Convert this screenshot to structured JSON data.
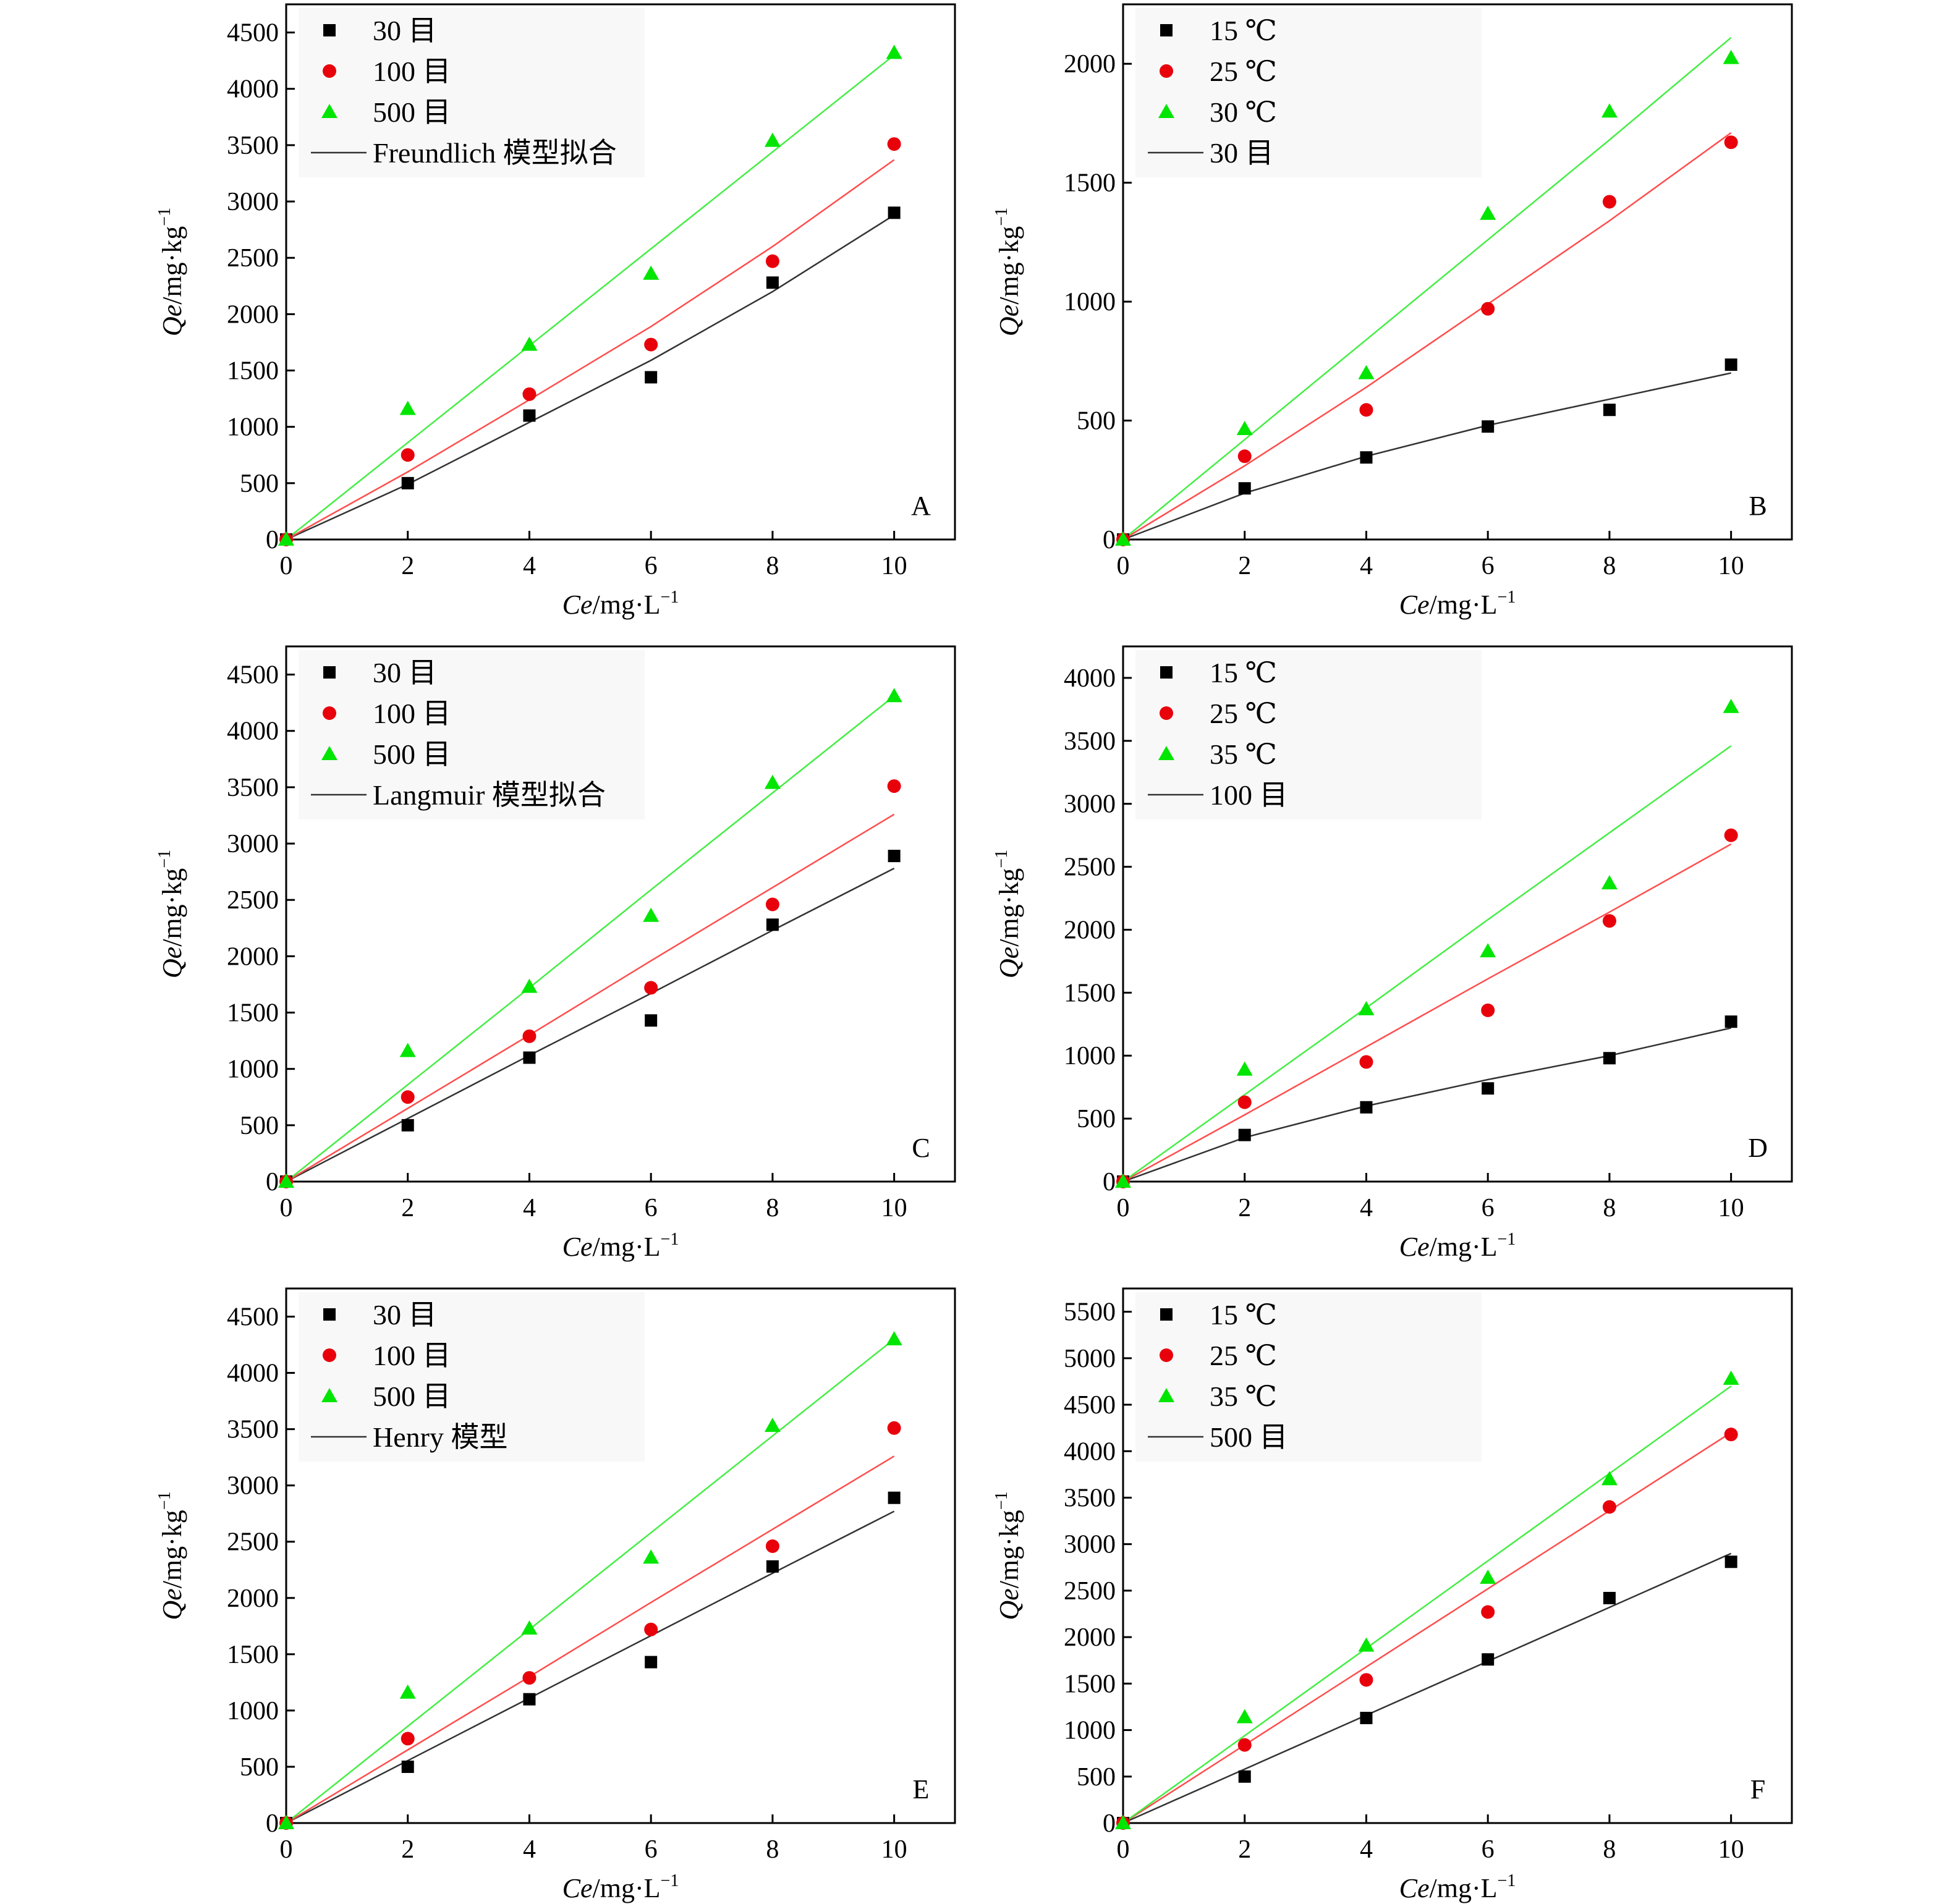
{
  "colors": {
    "black": "#000000",
    "red": "#e8000b",
    "green": "#00e600",
    "fit_black": "#333333",
    "fit_red": "#ff4d4d",
    "fit_green": "#44ee44",
    "legend_bg": "#f4f4f4"
  },
  "marker_shapes": [
    "square",
    "circle",
    "triangle"
  ],
  "chart_data": [
    {
      "type": "scatter",
      "panel_label": "A",
      "xlabel_italic": "Ce",
      "xlabel_unit": "/mg·L",
      "xlabel_sup": "−1",
      "ylabel_italic": "Qe",
      "ylabel_unit": "/mg·kg",
      "ylabel_sup": "−1",
      "xlim": [
        0,
        11
      ],
      "ylim": [
        0,
        4750
      ],
      "xticks": [
        0,
        2,
        4,
        6,
        8,
        10
      ],
      "yticks": [
        0,
        500,
        1000,
        1500,
        2000,
        2500,
        3000,
        3500,
        4000,
        4500
      ],
      "x": [
        0,
        2,
        4,
        6,
        8,
        10
      ],
      "series": [
        {
          "name": "30 目",
          "marker": "square",
          "values": [
            0,
            500,
            1100,
            1440,
            2280,
            2900
          ],
          "fit": [
            0,
            490,
            1040,
            1590,
            2200,
            2880
          ]
        },
        {
          "name": "100 目",
          "marker": "circle",
          "values": [
            0,
            750,
            1290,
            1730,
            2470,
            3510
          ],
          "fit": [
            0,
            600,
            1240,
            1890,
            2600,
            3370
          ]
        },
        {
          "name": "500 目",
          "marker": "triangle",
          "values": [
            0,
            1160,
            1730,
            2360,
            3540,
            4320
          ],
          "fit": [
            0,
            860,
            1720,
            2580,
            3440,
            4300
          ]
        }
      ],
      "fit_legend": "Freundlich 模型拟合"
    },
    {
      "type": "scatter",
      "panel_label": "B",
      "xlabel_italic": "Ce",
      "xlabel_unit": "/mg·L",
      "xlabel_sup": "−1",
      "ylabel_italic": "Qe",
      "ylabel_unit": "/mg·kg",
      "ylabel_sup": "−1",
      "xlim": [
        0,
        11
      ],
      "ylim": [
        0,
        2250
      ],
      "xticks": [
        0,
        2,
        4,
        6,
        8,
        10
      ],
      "yticks": [
        0,
        500,
        1000,
        1500,
        2000
      ],
      "x": [
        0,
        2,
        4,
        6,
        8,
        10
      ],
      "series": [
        {
          "name": "15 ℃",
          "marker": "square",
          "values": [
            0,
            215,
            345,
            475,
            545,
            735
          ],
          "fit": [
            0,
            195,
            350,
            480,
            590,
            700
          ]
        },
        {
          "name": "25 ℃",
          "marker": "circle",
          "values": [
            0,
            350,
            545,
            970,
            1420,
            1670
          ],
          "fit": [
            0,
            310,
            640,
            990,
            1340,
            1710
          ]
        },
        {
          "name": "30 ℃",
          "marker": "triangle",
          "values": [
            0,
            465,
            700,
            1370,
            1800,
            2025
          ],
          "fit": [
            0,
            420,
            840,
            1260,
            1680,
            2110
          ]
        }
      ],
      "fit_legend": "30 目"
    },
    {
      "type": "scatter",
      "panel_label": "C",
      "xlabel_italic": "Ce",
      "xlabel_unit": "/mg·L",
      "xlabel_sup": "−1",
      "ylabel_italic": "Qe",
      "ylabel_unit": "/mg·kg",
      "ylabel_sup": "−1",
      "xlim": [
        0,
        11
      ],
      "ylim": [
        0,
        4750
      ],
      "xticks": [
        0,
        2,
        4,
        6,
        8,
        10
      ],
      "yticks": [
        0,
        500,
        1000,
        1500,
        2000,
        2500,
        3000,
        3500,
        4000,
        4500
      ],
      "x": [
        0,
        2,
        4,
        6,
        8,
        10
      ],
      "series": [
        {
          "name": "30 目",
          "marker": "square",
          "values": [
            0,
            500,
            1100,
            1430,
            2280,
            2890
          ],
          "fit": [
            0,
            560,
            1120,
            1670,
            2230,
            2780
          ]
        },
        {
          "name": "100 目",
          "marker": "circle",
          "values": [
            0,
            750,
            1290,
            1720,
            2460,
            3510
          ],
          "fit": [
            0,
            650,
            1300,
            1960,
            2610,
            3260
          ]
        },
        {
          "name": "500 目",
          "marker": "triangle",
          "values": [
            0,
            1160,
            1730,
            2360,
            3540,
            4310
          ],
          "fit": [
            0,
            860,
            1720,
            2590,
            3450,
            4310
          ]
        }
      ],
      "fit_legend": "Langmuir 模型拟合"
    },
    {
      "type": "scatter",
      "panel_label": "D",
      "xlabel_italic": "Ce",
      "xlabel_unit": "/mg·L",
      "xlabel_sup": "−1",
      "ylabel_italic": "Qe",
      "ylabel_unit": "/mg·kg",
      "ylabel_sup": "−1",
      "xlim": [
        0,
        11
      ],
      "ylim": [
        0,
        4250
      ],
      "xticks": [
        0,
        2,
        4,
        6,
        8,
        10
      ],
      "yticks": [
        0,
        500,
        1000,
        1500,
        2000,
        2500,
        3000,
        3500,
        4000
      ],
      "x": [
        0,
        2,
        4,
        6,
        8,
        10
      ],
      "series": [
        {
          "name": "15 ℃",
          "marker": "square",
          "values": [
            0,
            370,
            590,
            740,
            980,
            1270
          ],
          "fit": [
            0,
            350,
            600,
            810,
            1000,
            1220
          ]
        },
        {
          "name": "25 ℃",
          "marker": "circle",
          "values": [
            0,
            630,
            950,
            1360,
            2070,
            2750
          ],
          "fit": [
            0,
            530,
            1070,
            1610,
            2140,
            2680
          ]
        },
        {
          "name": "35 ℃",
          "marker": "triangle",
          "values": [
            0,
            890,
            1370,
            1830,
            2370,
            3770
          ],
          "fit": [
            0,
            690,
            1380,
            2080,
            2770,
            3460
          ]
        }
      ],
      "fit_legend": "100 目"
    },
    {
      "type": "scatter",
      "panel_label": "E",
      "xlabel_italic": "Ce",
      "xlabel_unit": "/mg·L",
      "xlabel_sup": "−1",
      "ylabel_italic": "Qe",
      "ylabel_unit": "/mg·kg",
      "ylabel_sup": "−1",
      "xlim": [
        0,
        11
      ],
      "ylim": [
        0,
        4750
      ],
      "xticks": [
        0,
        2,
        4,
        6,
        8,
        10
      ],
      "yticks": [
        0,
        500,
        1000,
        1500,
        2000,
        2500,
        3000,
        3500,
        4000,
        4500
      ],
      "x": [
        0,
        2,
        4,
        6,
        8,
        10
      ],
      "series": [
        {
          "name": "30 目",
          "marker": "square",
          "values": [
            0,
            500,
            1100,
            1430,
            2280,
            2890
          ],
          "fit": [
            0,
            555,
            1110,
            1665,
            2220,
            2770
          ]
        },
        {
          "name": "100 目",
          "marker": "circle",
          "values": [
            0,
            750,
            1290,
            1720,
            2460,
            3510
          ],
          "fit": [
            0,
            650,
            1300,
            1960,
            2610,
            3260
          ]
        },
        {
          "name": "500 目",
          "marker": "triangle",
          "values": [
            0,
            1160,
            1730,
            2360,
            3530,
            4300
          ],
          "fit": [
            0,
            860,
            1720,
            2580,
            3440,
            4300
          ]
        }
      ],
      "fit_legend": "Henry 模型"
    },
    {
      "type": "scatter",
      "panel_label": "F",
      "xlabel_italic": "Ce",
      "xlabel_unit": "/mg·L",
      "xlabel_sup": "−1",
      "ylabel_italic": "Qe",
      "ylabel_unit": "/mg·kg",
      "ylabel_sup": "−1",
      "xlim": [
        0,
        11
      ],
      "ylim": [
        0,
        5750
      ],
      "xticks": [
        0,
        2,
        4,
        6,
        8,
        10
      ],
      "yticks": [
        0,
        500,
        1000,
        1500,
        2000,
        2500,
        3000,
        3500,
        4000,
        4500,
        5000,
        5500
      ],
      "x": [
        0,
        2,
        4,
        6,
        8,
        10
      ],
      "series": [
        {
          "name": "15 ℃",
          "marker": "square",
          "values": [
            0,
            500,
            1130,
            1760,
            2420,
            2810
          ],
          "fit": [
            0,
            580,
            1160,
            1740,
            2320,
            2900
          ]
        },
        {
          "name": "25 ℃",
          "marker": "circle",
          "values": [
            0,
            840,
            1540,
            2270,
            3400,
            4180
          ],
          "fit": [
            0,
            840,
            1680,
            2520,
            3360,
            4200
          ]
        },
        {
          "name": "35 ℃",
          "marker": "triangle",
          "values": [
            0,
            1140,
            1910,
            2640,
            3700,
            4780
          ],
          "fit": [
            0,
            940,
            1880,
            2820,
            3760,
            4700
          ]
        }
      ],
      "fit_legend": "500 目"
    }
  ]
}
